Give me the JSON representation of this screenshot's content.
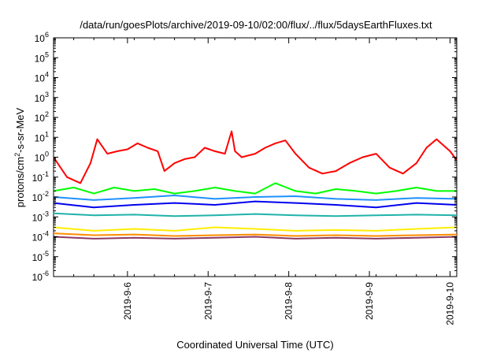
{
  "chart_data": {
    "type": "line",
    "title": "/data/run/goesPlots/archive/2019-09-10/02:00/flux/../flux/5daysEarthFluxes.txt",
    "xlabel": "Coordinated Universal Time (UTC)",
    "ylabel": {
      "pre": "protons/cm",
      "sup": "2",
      "post": "-s-sr-MeV"
    },
    "yscale": "log",
    "ylim": [
      1e-06,
      1000000.0
    ],
    "yticks": [
      {
        "base": "10",
        "exp": "-6"
      },
      {
        "base": "10",
        "exp": "-5"
      },
      {
        "base": "10",
        "exp": "-4"
      },
      {
        "base": "10",
        "exp": "-3"
      },
      {
        "base": "10",
        "exp": "-2"
      },
      {
        "base": "10",
        "exp": "-1"
      },
      {
        "base": "10",
        "exp": "0"
      },
      {
        "base": "10",
        "exp": "1"
      },
      {
        "base": "10",
        "exp": "2"
      },
      {
        "base": "10",
        "exp": "3"
      },
      {
        "base": "10",
        "exp": "4"
      },
      {
        "base": "10",
        "exp": "5"
      },
      {
        "base": "10",
        "exp": "6"
      }
    ],
    "xlim": [
      "2019-09-05T02:00",
      "2019-09-10T02:00"
    ],
    "xticks": [
      "2019-9-6",
      "2019-9-7",
      "2019-9-8",
      "2019-9-9",
      "2019-9-10"
    ],
    "grid": false,
    "legend": "none",
    "series": [
      {
        "color": "#ff0000",
        "x": [
          "2019-09-05T02:00",
          "2019-09-05T06:00",
          "2019-09-05T10:00",
          "2019-09-05T13:00",
          "2019-09-05T15:00",
          "2019-09-05T18:00",
          "2019-09-05T21:00",
          "2019-09-06T00:00",
          "2019-09-06T03:00",
          "2019-09-06T06:00",
          "2019-09-06T09:00",
          "2019-09-06T11:00",
          "2019-09-06T14:00",
          "2019-09-06T17:00",
          "2019-09-06T20:00",
          "2019-09-06T23:00",
          "2019-09-07T02:00",
          "2019-09-07T05:00",
          "2019-09-07T07:00",
          "2019-09-07T08:00",
          "2019-09-07T10:00",
          "2019-09-07T14:00",
          "2019-09-07T17:00",
          "2019-09-07T20:00",
          "2019-09-07T23:00",
          "2019-09-08T02:00",
          "2019-09-08T06:00",
          "2019-09-08T10:00",
          "2019-09-08T14:00",
          "2019-09-08T18:00",
          "2019-09-08T22:00",
          "2019-09-09T02:00",
          "2019-09-09T06:00",
          "2019-09-09T10:00",
          "2019-09-09T14:00",
          "2019-09-09T17:00",
          "2019-09-09T20:00",
          "2019-09-10T00:00",
          "2019-09-10T02:00"
        ],
        "values": [
          1.0,
          0.1,
          0.05,
          0.5,
          8,
          1.5,
          2.0,
          2.5,
          5,
          3,
          2,
          0.2,
          0.5,
          0.8,
          1.0,
          3,
          2,
          1.5,
          20,
          2,
          1.0,
          1.5,
          3,
          5,
          7,
          1.5,
          0.3,
          0.15,
          0.2,
          0.5,
          1.0,
          1.5,
          0.3,
          0.15,
          0.5,
          3,
          8,
          2,
          0.7
        ]
      },
      {
        "color": "#00ff00",
        "x": [
          "2019-09-05T02:00",
          "2019-09-05T08:00",
          "2019-09-05T14:00",
          "2019-09-05T20:00",
          "2019-09-06T02:00",
          "2019-09-06T08:00",
          "2019-09-06T14:00",
          "2019-09-06T20:00",
          "2019-09-07T02:00",
          "2019-09-07T08:00",
          "2019-09-07T14:00",
          "2019-09-07T20:00",
          "2019-09-08T02:00",
          "2019-09-08T08:00",
          "2019-09-08T14:00",
          "2019-09-08T20:00",
          "2019-09-09T02:00",
          "2019-09-09T08:00",
          "2019-09-09T14:00",
          "2019-09-09T20:00",
          "2019-09-10T02:00"
        ],
        "values": [
          0.02,
          0.03,
          0.015,
          0.03,
          0.02,
          0.025,
          0.015,
          0.02,
          0.03,
          0.02,
          0.015,
          0.05,
          0.02,
          0.015,
          0.025,
          0.02,
          0.015,
          0.02,
          0.03,
          0.02,
          0.02
        ]
      },
      {
        "color": "#0000ee",
        "x": [
          "2019-09-05T02:00",
          "2019-09-05T14:00",
          "2019-09-06T02:00",
          "2019-09-06T14:00",
          "2019-09-07T02:00",
          "2019-09-07T14:00",
          "2019-09-08T02:00",
          "2019-09-08T14:00",
          "2019-09-09T02:00",
          "2019-09-09T14:00",
          "2019-09-10T02:00"
        ],
        "values": [
          0.005,
          0.003,
          0.004,
          0.005,
          0.004,
          0.006,
          0.005,
          0.004,
          0.003,
          0.005,
          0.004
        ]
      },
      {
        "color": "#1e90ff",
        "x": [
          "2019-09-05T02:00",
          "2019-09-05T14:00",
          "2019-09-06T02:00",
          "2019-09-06T14:00",
          "2019-09-07T02:00",
          "2019-09-07T14:00",
          "2019-09-08T02:00",
          "2019-09-08T14:00",
          "2019-09-09T02:00",
          "2019-09-09T14:00",
          "2019-09-10T02:00"
        ],
        "values": [
          0.01,
          0.007,
          0.009,
          0.012,
          0.008,
          0.01,
          0.011,
          0.008,
          0.007,
          0.009,
          0.008
        ]
      },
      {
        "color": "#20b2aa",
        "x": [
          "2019-09-05T02:00",
          "2019-09-05T14:00",
          "2019-09-06T02:00",
          "2019-09-06T14:00",
          "2019-09-07T02:00",
          "2019-09-07T14:00",
          "2019-09-08T02:00",
          "2019-09-08T14:00",
          "2019-09-09T02:00",
          "2019-09-09T14:00",
          "2019-09-10T02:00"
        ],
        "values": [
          0.0015,
          0.0012,
          0.0013,
          0.0011,
          0.0012,
          0.0014,
          0.0012,
          0.0011,
          0.0012,
          0.0013,
          0.0012
        ]
      },
      {
        "color": "#ffee00",
        "x": [
          "2019-09-05T02:00",
          "2019-09-05T14:00",
          "2019-09-06T02:00",
          "2019-09-06T14:00",
          "2019-09-07T02:00",
          "2019-09-07T14:00",
          "2019-09-08T02:00",
          "2019-09-08T14:00",
          "2019-09-09T02:00",
          "2019-09-09T14:00",
          "2019-09-10T02:00"
        ],
        "values": [
          0.0003,
          0.0002,
          0.00025,
          0.0002,
          0.0003,
          0.00025,
          0.0002,
          0.00022,
          0.0002,
          0.00025,
          0.0003
        ]
      },
      {
        "color": "#ff8c00",
        "x": [
          "2019-09-05T02:00",
          "2019-09-05T14:00",
          "2019-09-06T02:00",
          "2019-09-06T14:00",
          "2019-09-07T02:00",
          "2019-09-07T14:00",
          "2019-09-08T02:00",
          "2019-09-08T14:00",
          "2019-09-09T02:00",
          "2019-09-09T14:00",
          "2019-09-10T02:00"
        ],
        "values": [
          0.00015,
          0.00012,
          0.00013,
          0.00011,
          0.00012,
          0.00013,
          0.00011,
          0.00012,
          0.00011,
          0.00012,
          0.00013
        ]
      },
      {
        "color": "#8b3a62",
        "x": [
          "2019-09-05T02:00",
          "2019-09-05T14:00",
          "2019-09-06T02:00",
          "2019-09-06T14:00",
          "2019-09-07T02:00",
          "2019-09-07T14:00",
          "2019-09-08T02:00",
          "2019-09-08T14:00",
          "2019-09-09T02:00",
          "2019-09-09T14:00",
          "2019-09-10T02:00"
        ],
        "values": [
          0.0001,
          8e-05,
          9e-05,
          8e-05,
          9e-05,
          0.0001,
          8e-05,
          9e-05,
          8e-05,
          9e-05,
          0.0001
        ]
      }
    ]
  }
}
